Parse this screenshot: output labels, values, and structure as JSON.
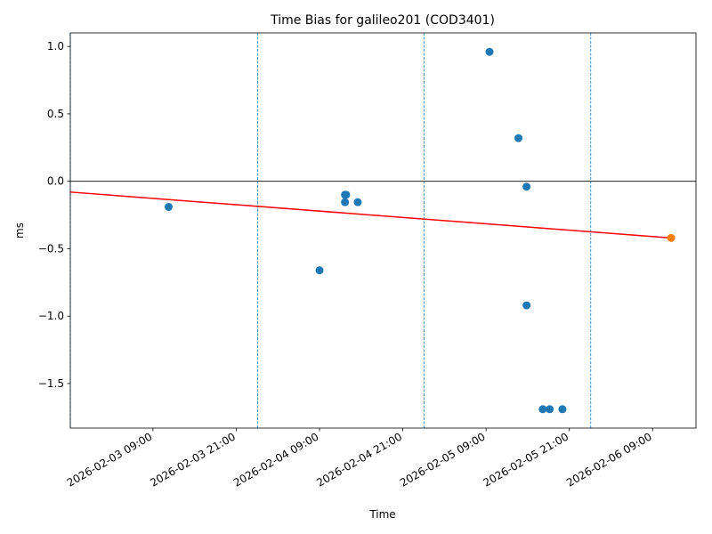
{
  "chart_data": {
    "type": "scatter",
    "title": "Time Bias for galileo201 (COD3401)",
    "xlabel": "Time",
    "ylabel": "ms",
    "x_ticks": [
      "2026-02-03 09:00",
      "2026-02-03 21:00",
      "2026-02-04 09:00",
      "2026-02-04 21:00",
      "2026-02-05 09:00",
      "2026-02-05 21:00",
      "2026-02-06 09:00"
    ],
    "y_ticks": [
      "1.0",
      "0.5",
      "0.0",
      "−0.5",
      "−1.0",
      "−1.5"
    ],
    "y_tick_values": [
      1.0,
      0.5,
      0.0,
      -0.5,
      -1.0,
      -1.5
    ],
    "xlim": [
      "2026-02-02 21:05",
      "2026-02-06 15:15"
    ],
    "ylim": [
      -1.83,
      1.1
    ],
    "series": [
      {
        "color": "#1f77b4",
        "points": [
          {
            "x": "2026-02-03 11:15",
            "y": -0.19
          },
          {
            "x": "2026-02-04 09:00",
            "y": -0.66
          },
          {
            "x": "2026-02-04 12:40",
            "y": -0.1
          },
          {
            "x": "2026-02-04 12:50",
            "y": -0.1
          },
          {
            "x": "2026-02-04 12:40",
            "y": -0.155
          },
          {
            "x": "2026-02-04 14:30",
            "y": -0.155
          },
          {
            "x": "2026-02-05 09:30",
            "y": 0.96
          },
          {
            "x": "2026-02-05 13:40",
            "y": 0.32
          },
          {
            "x": "2026-02-05 14:50",
            "y": -0.04
          },
          {
            "x": "2026-02-05 14:50",
            "y": -0.92
          },
          {
            "x": "2026-02-05 17:10",
            "y": -1.69
          },
          {
            "x": "2026-02-05 18:10",
            "y": -1.69
          },
          {
            "x": "2026-02-05 20:00",
            "y": -1.69
          }
        ]
      },
      {
        "color": "#ff7f0e",
        "points": [
          {
            "x": "2026-02-06 11:40",
            "y": -0.42
          }
        ]
      }
    ],
    "trend_line": {
      "color": "#ff0000",
      "points": [
        {
          "x": "2026-02-02 21:05",
          "y": -0.08
        },
        {
          "x": "2026-02-06 11:40",
          "y": -0.42
        }
      ]
    },
    "vertical_lines": [
      "2026-02-02 21:05",
      "2026-02-04 00:05",
      "2026-02-05 00:05",
      "2026-02-06 00:05"
    ],
    "vertical_line_color": "#1f77b4",
    "horizontal_line": {
      "y": 0,
      "color": "#000000"
    },
    "grid": false,
    "legend": "none"
  }
}
